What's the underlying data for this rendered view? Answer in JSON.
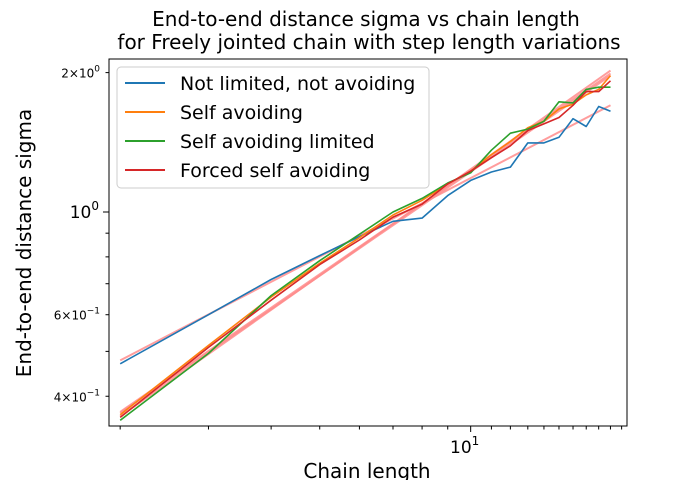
{
  "chart_data": {
    "type": "line",
    "title": "End-to-end distance sigma vs chain length",
    "subtitle": "for Freely jointed chain with step length variations",
    "xlabel": "Chain length",
    "ylabel": "End-to-end distance sigma",
    "xscale": "log",
    "yscale": "log",
    "xlim": [
      1.9,
      20.5
    ],
    "ylim": [
      0.345,
      2.14
    ],
    "grid": false,
    "legend_position": "top-left",
    "x_ticks": [
      {
        "value": 10,
        "label": "10^1",
        "base": "10",
        "exp": "1"
      }
    ],
    "y_ticks_major": [
      {
        "value": 1,
        "label": "10^0",
        "base": "10",
        "exp": "0"
      }
    ],
    "y_ticks_minor_labeled": [
      {
        "value": 2,
        "label": "2×10^0",
        "mant": "2",
        "base": "10",
        "exp": "0"
      },
      {
        "value": 0.6,
        "label": "6×10^-1",
        "mant": "6",
        "base": "10",
        "exp": "−1"
      },
      {
        "value": 0.4,
        "label": "4×10^-1",
        "mant": "4",
        "base": "10",
        "exp": "−1"
      }
    ],
    "series": [
      {
        "name": "Not limited, not avoiding",
        "color": "#1f77b4",
        "x": [
          2,
          3,
          4,
          5,
          6,
          7,
          8,
          9,
          10,
          11,
          12,
          13,
          14,
          15,
          16,
          17,
          18,
          19
        ],
        "y": [
          0.47,
          0.6,
          0.715,
          0.805,
          0.885,
          0.955,
          0.97,
          1.085,
          1.17,
          1.22,
          1.25,
          1.41,
          1.41,
          1.45,
          1.59,
          1.53,
          1.69,
          1.65
        ]
      },
      {
        "name": "Self avoiding",
        "color": "#ff7f0e",
        "x": [
          2,
          3,
          4,
          5,
          6,
          7,
          8,
          9,
          10,
          11,
          12,
          13,
          14,
          15,
          16,
          17,
          18,
          19
        ],
        "y": [
          0.365,
          0.515,
          0.655,
          0.775,
          0.88,
          0.985,
          1.06,
          1.15,
          1.225,
          1.33,
          1.42,
          1.52,
          1.57,
          1.67,
          1.71,
          1.79,
          1.84,
          1.97
        ]
      },
      {
        "name": "Self avoiding limited",
        "color": "#2ca02c",
        "x": [
          2,
          3,
          4,
          5,
          6,
          7,
          8,
          9,
          10,
          11,
          12,
          13,
          14,
          15,
          16,
          17,
          18,
          19
        ],
        "y": [
          0.355,
          0.495,
          0.66,
          0.785,
          0.895,
          1.0,
          1.07,
          1.155,
          1.215,
          1.36,
          1.48,
          1.51,
          1.57,
          1.73,
          1.72,
          1.84,
          1.86,
          1.86
        ]
      },
      {
        "name": "Forced self avoiding",
        "color": "#d62728",
        "x": [
          2,
          3,
          4,
          5,
          6,
          7,
          8,
          9,
          10,
          11,
          12,
          13,
          14,
          15,
          16,
          17,
          18,
          19
        ],
        "y": [
          0.36,
          0.51,
          0.645,
          0.77,
          0.87,
          0.975,
          1.04,
          1.15,
          1.225,
          1.31,
          1.39,
          1.5,
          1.55,
          1.6,
          1.7,
          1.82,
          1.82,
          1.92
        ]
      }
    ],
    "fits": [
      {
        "color": "#ff8c8c",
        "x": [
          2,
          19
        ],
        "y": [
          0.478,
          1.7
        ]
      },
      {
        "color": "#ff8c8c",
        "x": [
          2,
          19
        ],
        "y": [
          0.37,
          1.99
        ]
      },
      {
        "color": "#ff8c8c",
        "x": [
          2,
          19
        ],
        "y": [
          0.362,
          2.02
        ]
      },
      {
        "color": "#ff8c8c",
        "x": [
          2,
          19
        ],
        "y": [
          0.368,
          1.97
        ]
      }
    ]
  }
}
